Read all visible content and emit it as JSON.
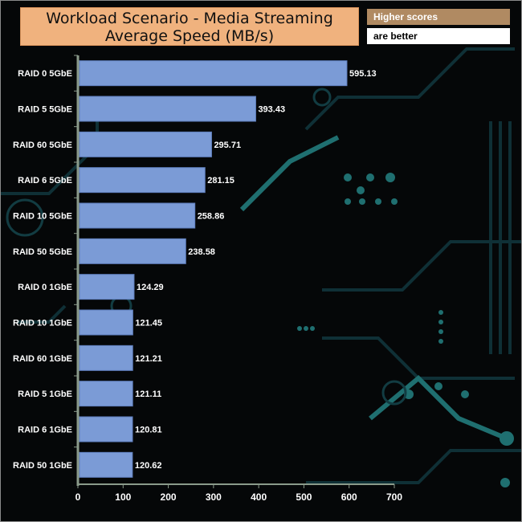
{
  "chart_data": {
    "type": "bar",
    "orientation": "horizontal",
    "title": "Workload Scenario - Media Streaming",
    "subtitle": "Average Speed (MB/s)",
    "categories": [
      "RAID 0 5GbE",
      "RAID 5 5GbE",
      "RAID 60 5GbE",
      "RAID 6 5GbE",
      "RAID 10 5GbE",
      "RAID 50 5GbE",
      "RAID 0 1GbE",
      "RAID 10 1GbE",
      "RAID 60 1GbE",
      "RAID 5 1GbE",
      "RAID 6 1GbE",
      "RAID 50 1GbE"
    ],
    "values": [
      595.13,
      393.43,
      295.71,
      281.15,
      258.86,
      238.58,
      124.29,
      121.45,
      121.21,
      121.11,
      120.81,
      120.62
    ],
    "value_labels": [
      "595.13",
      "393.43",
      "295.71",
      "281.15",
      "258.86",
      "238.58",
      "124.29",
      "121.45",
      "121.21",
      "121.11",
      "120.81",
      "120.62"
    ],
    "xlim": [
      0,
      700
    ],
    "xticks": [
      "0",
      "100",
      "200",
      "300",
      "400",
      "500",
      "600",
      "700"
    ],
    "xlabel": "",
    "ylabel": "",
    "grid": false,
    "legend": "none"
  },
  "notes": {
    "line1": "Higher scores",
    "line2": "are better"
  },
  "colors": {
    "bar": "#7b9bd6",
    "bar_outline": "#5f7fbf",
    "axis": "#8a9a8a",
    "text": "#ffffff",
    "title_bg": "#f0b27e",
    "note_bg": "#b08a62",
    "circuit": "#0f3036",
    "circuit_accent": "#1f6f70"
  }
}
